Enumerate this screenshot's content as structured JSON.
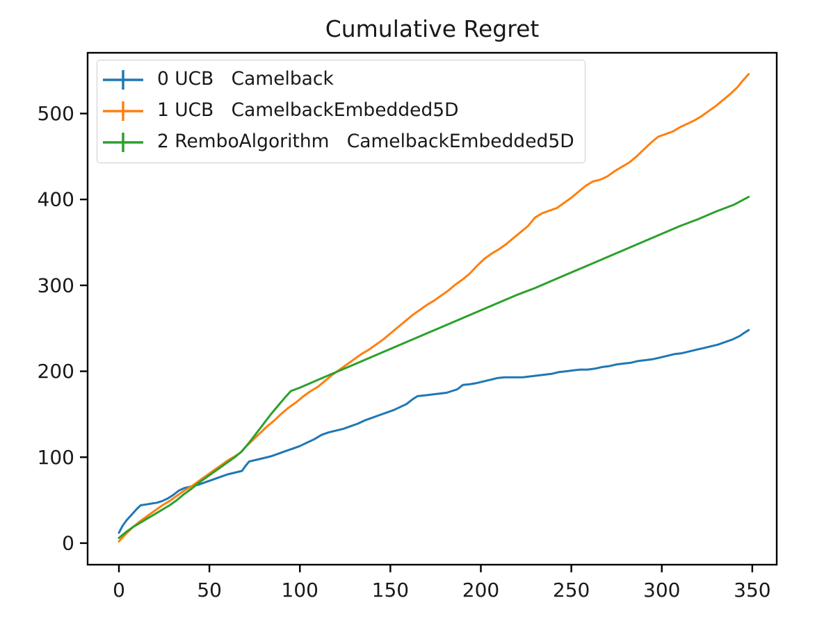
{
  "chart_data": {
    "type": "line",
    "title": "Cumulative Regret",
    "xlabel": "",
    "ylabel": "",
    "x_ticks": [
      0,
      50,
      100,
      150,
      200,
      250,
      300,
      350
    ],
    "y_ticks": [
      0,
      100,
      200,
      300,
      400,
      500
    ],
    "xlim": [
      -17.3,
      363.5
    ],
    "ylim": [
      -25.1,
      570.7
    ],
    "grid": false,
    "legend_position": "upper left",
    "axis_color": "#000000",
    "text_color": "#191919",
    "series": [
      {
        "label": "0 UCB   Camelback",
        "color": "#1f77b4",
        "marker": "errorbar",
        "points": [
          [
            0,
            12
          ],
          [
            2,
            20
          ],
          [
            4,
            26
          ],
          [
            7,
            33
          ],
          [
            10,
            40
          ],
          [
            12,
            44
          ],
          [
            15,
            45
          ],
          [
            18,
            46
          ],
          [
            21,
            47
          ],
          [
            24,
            49
          ],
          [
            27,
            52
          ],
          [
            30,
            56
          ],
          [
            33,
            61
          ],
          [
            36,
            64
          ],
          [
            40,
            66
          ],
          [
            44,
            68
          ],
          [
            48,
            71
          ],
          [
            52,
            74
          ],
          [
            56,
            77
          ],
          [
            60,
            80
          ],
          [
            64,
            82
          ],
          [
            68,
            84
          ],
          [
            70,
            90
          ],
          [
            72,
            95
          ],
          [
            76,
            97
          ],
          [
            80,
            99
          ],
          [
            84,
            101
          ],
          [
            88,
            104
          ],
          [
            92,
            107
          ],
          [
            96,
            110
          ],
          [
            100,
            113
          ],
          [
            104,
            117
          ],
          [
            108,
            121
          ],
          [
            112,
            126
          ],
          [
            116,
            129
          ],
          [
            120,
            131
          ],
          [
            124,
            133
          ],
          [
            128,
            136
          ],
          [
            132,
            139
          ],
          [
            136,
            143
          ],
          [
            140,
            146
          ],
          [
            144,
            149
          ],
          [
            148,
            152
          ],
          [
            152,
            155
          ],
          [
            156,
            159
          ],
          [
            159,
            162
          ],
          [
            162,
            167
          ],
          [
            165,
            171
          ],
          [
            169,
            172
          ],
          [
            173,
            173
          ],
          [
            177,
            174
          ],
          [
            181,
            175
          ],
          [
            184,
            177
          ],
          [
            187,
            179
          ],
          [
            190,
            184
          ],
          [
            194,
            185
          ],
          [
            197,
            186
          ],
          [
            201,
            188
          ],
          [
            205,
            190
          ],
          [
            209,
            192
          ],
          [
            213,
            193
          ],
          [
            218,
            193
          ],
          [
            223,
            193
          ],
          [
            227,
            194
          ],
          [
            231,
            195
          ],
          [
            235,
            196
          ],
          [
            239,
            197
          ],
          [
            243,
            199
          ],
          [
            247,
            200
          ],
          [
            251,
            201
          ],
          [
            255,
            202
          ],
          [
            259,
            202
          ],
          [
            263,
            203
          ],
          [
            267,
            205
          ],
          [
            271,
            206
          ],
          [
            275,
            208
          ],
          [
            279,
            209
          ],
          [
            283,
            210
          ],
          [
            287,
            212
          ],
          [
            291,
            213
          ],
          [
            295,
            214
          ],
          [
            299,
            216
          ],
          [
            303,
            218
          ],
          [
            307,
            220
          ],
          [
            311,
            221
          ],
          [
            315,
            223
          ],
          [
            319,
            225
          ],
          [
            323,
            227
          ],
          [
            327,
            229
          ],
          [
            331,
            231
          ],
          [
            335,
            234
          ],
          [
            339,
            237
          ],
          [
            343,
            241
          ],
          [
            345,
            244
          ],
          [
            348,
            248
          ]
        ]
      },
      {
        "label": "1 UCB   CamelbackEmbedded5D",
        "color": "#ff7f0e",
        "marker": "errorbar",
        "points": [
          [
            0,
            2
          ],
          [
            4,
            11
          ],
          [
            8,
            19
          ],
          [
            12,
            26
          ],
          [
            16,
            32
          ],
          [
            20,
            38
          ],
          [
            24,
            44
          ],
          [
            28,
            49
          ],
          [
            32,
            55
          ],
          [
            36,
            61
          ],
          [
            40,
            66
          ],
          [
            44,
            72
          ],
          [
            48,
            78
          ],
          [
            52,
            84
          ],
          [
            56,
            90
          ],
          [
            60,
            96
          ],
          [
            64,
            101
          ],
          [
            67,
            105
          ],
          [
            70,
            112
          ],
          [
            74,
            120
          ],
          [
            78,
            128
          ],
          [
            82,
            136
          ],
          [
            86,
            143
          ],
          [
            90,
            151
          ],
          [
            94,
            158
          ],
          [
            98,
            164
          ],
          [
            102,
            171
          ],
          [
            106,
            177
          ],
          [
            110,
            182
          ],
          [
            114,
            189
          ],
          [
            118,
            196
          ],
          [
            122,
            202
          ],
          [
            126,
            208
          ],
          [
            130,
            214
          ],
          [
            134,
            220
          ],
          [
            138,
            225
          ],
          [
            142,
            231
          ],
          [
            146,
            237
          ],
          [
            150,
            244
          ],
          [
            154,
            251
          ],
          [
            158,
            258
          ],
          [
            162,
            265
          ],
          [
            166,
            271
          ],
          [
            170,
            277
          ],
          [
            174,
            282
          ],
          [
            178,
            288
          ],
          [
            182,
            294
          ],
          [
            186,
            301
          ],
          [
            190,
            307
          ],
          [
            194,
            314
          ],
          [
            198,
            323
          ],
          [
            202,
            331
          ],
          [
            206,
            337
          ],
          [
            210,
            342
          ],
          [
            214,
            348
          ],
          [
            218,
            355
          ],
          [
            222,
            362
          ],
          [
            226,
            369
          ],
          [
            230,
            379
          ],
          [
            234,
            384
          ],
          [
            238,
            387
          ],
          [
            242,
            390
          ],
          [
            246,
            396
          ],
          [
            250,
            402
          ],
          [
            254,
            409
          ],
          [
            258,
            416
          ],
          [
            262,
            421
          ],
          [
            266,
            423
          ],
          [
            270,
            427
          ],
          [
            274,
            433
          ],
          [
            278,
            438
          ],
          [
            282,
            443
          ],
          [
            286,
            450
          ],
          [
            290,
            458
          ],
          [
            294,
            466
          ],
          [
            298,
            473
          ],
          [
            302,
            476
          ],
          [
            306,
            479
          ],
          [
            310,
            484
          ],
          [
            314,
            488
          ],
          [
            318,
            492
          ],
          [
            322,
            497
          ],
          [
            326,
            503
          ],
          [
            330,
            509
          ],
          [
            334,
            516
          ],
          [
            338,
            523
          ],
          [
            342,
            531
          ],
          [
            345,
            539
          ],
          [
            348,
            546
          ]
        ]
      },
      {
        "label": "2 RemboAlgorithm   CamelbackEmbedded5D",
        "color": "#2ca02c",
        "marker": "errorbar",
        "points": [
          [
            0,
            6
          ],
          [
            4,
            13
          ],
          [
            8,
            19
          ],
          [
            12,
            24
          ],
          [
            16,
            29
          ],
          [
            20,
            34
          ],
          [
            24,
            39
          ],
          [
            28,
            44
          ],
          [
            32,
            50
          ],
          [
            36,
            57
          ],
          [
            40,
            63
          ],
          [
            44,
            70
          ],
          [
            48,
            76
          ],
          [
            52,
            82
          ],
          [
            56,
            88
          ],
          [
            60,
            94
          ],
          [
            64,
            100
          ],
          [
            68,
            107
          ],
          [
            72,
            117
          ],
          [
            76,
            128
          ],
          [
            80,
            139
          ],
          [
            84,
            150
          ],
          [
            88,
            160
          ],
          [
            92,
            170
          ],
          [
            95,
            177
          ],
          [
            100,
            181
          ],
          [
            110,
            190
          ],
          [
            120,
            199
          ],
          [
            130,
            208
          ],
          [
            140,
            217
          ],
          [
            150,
            226
          ],
          [
            160,
            235
          ],
          [
            170,
            244
          ],
          [
            180,
            253
          ],
          [
            190,
            262
          ],
          [
            200,
            271
          ],
          [
            210,
            280
          ],
          [
            220,
            289
          ],
          [
            230,
            297
          ],
          [
            240,
            306
          ],
          [
            250,
            315
          ],
          [
            260,
            324
          ],
          [
            270,
            333
          ],
          [
            280,
            342
          ],
          [
            290,
            351
          ],
          [
            300,
            360
          ],
          [
            310,
            369
          ],
          [
            320,
            377
          ],
          [
            330,
            386
          ],
          [
            340,
            394
          ],
          [
            348,
            403
          ]
        ]
      }
    ]
  }
}
